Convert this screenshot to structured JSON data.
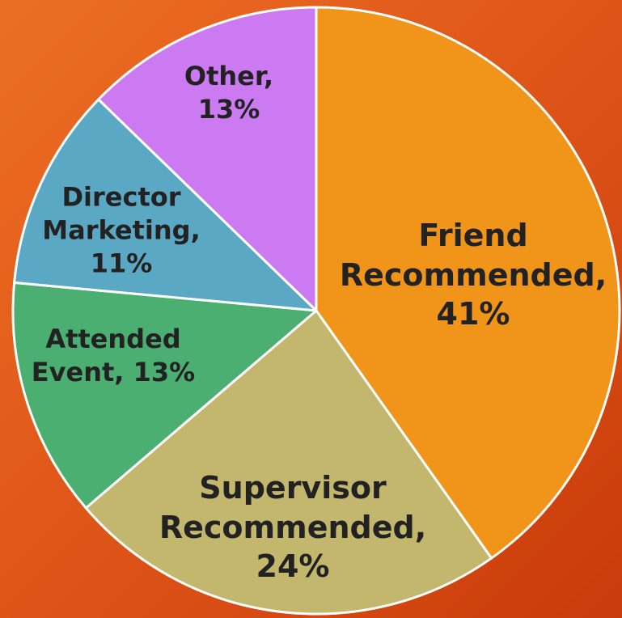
{
  "chart_data": {
    "type": "pie",
    "values": [
      41,
      24,
      13,
      11,
      13
    ],
    "value_labels": [
      "Friend Recommended, 41%",
      "Supervisor Recommended, 24%",
      "Attended Event, 13%",
      "Director Marketing, 11%",
      "Other, 13%"
    ],
    "colors": [
      "#f0941a",
      "#c2b76d",
      "#4caf72",
      "#5aa8c4",
      "#cc7af2"
    ]
  }
}
